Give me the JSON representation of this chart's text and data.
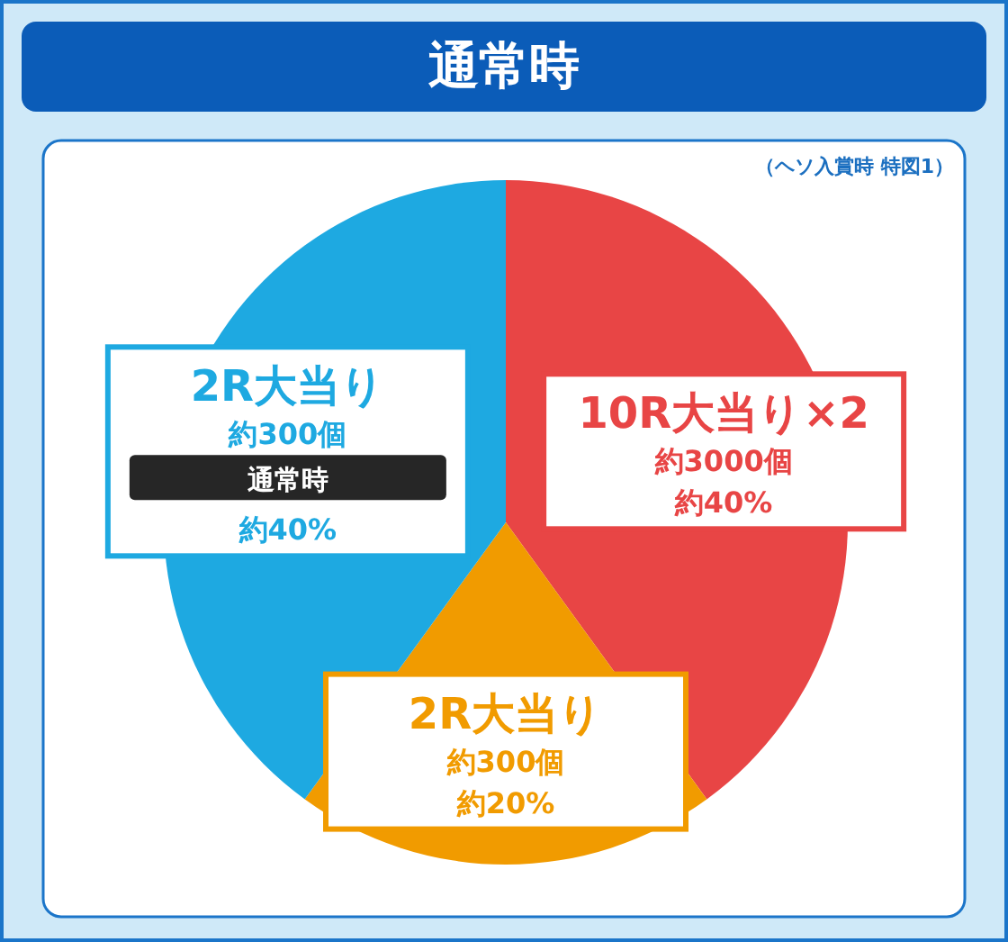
{
  "chart_data": {
    "type": "pie",
    "title": "通常時",
    "annotations": [
      "（ヘソ入賞時 特図1）",
      {
        "text": "約3000個",
        "x": "10R大当り×2"
      },
      {
        "text": "約300個",
        "x": "2R大当り"
      },
      {
        "text": "約300個",
        "x": "2R大当り"
      },
      {
        "text": "通常時",
        "x": "2R大当り"
      }
    ],
    "categories": [
      "10R大当り×2",
      "2R大当り",
      "2R大当り"
    ],
    "values": [
      40,
      20,
      40
    ],
    "colors": [
      "#e84545",
      "#f19b00",
      "#1ea9e1"
    ],
    "value_labels": [
      "約40%",
      "約20%",
      "約40%"
    ]
  }
}
